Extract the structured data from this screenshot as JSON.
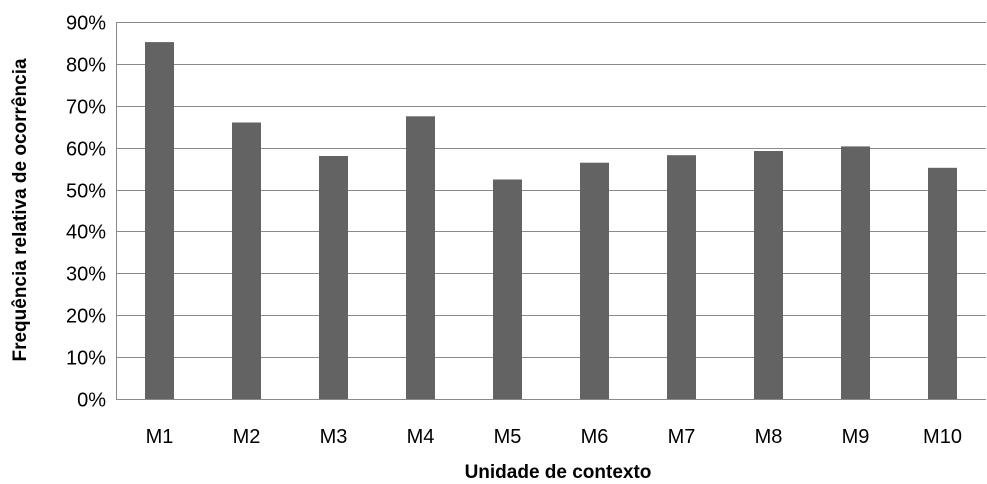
{
  "chart_data": {
    "type": "bar",
    "title": "",
    "xlabel": "Unidade de contexto",
    "ylabel": "Frequência relativa de ocorrência",
    "categories": [
      "M1",
      "M2",
      "M3",
      "M4",
      "M5",
      "M6",
      "M7",
      "M8",
      "M9",
      "M10"
    ],
    "values": [
      85.2,
      66.0,
      58.0,
      67.5,
      52.4,
      56.4,
      58.2,
      59.2,
      60.3,
      55.2
    ],
    "ylim": [
      0,
      90
    ],
    "yticks": [
      0,
      10,
      20,
      30,
      40,
      50,
      60,
      70,
      80,
      90
    ],
    "ytick_labels": [
      "0%",
      "10%",
      "20%",
      "30%",
      "40%",
      "50%",
      "60%",
      "70%",
      "80%",
      "90%"
    ],
    "grid": true,
    "legend": "none",
    "bar_color": "#636363",
    "grid_color": "#8a8a8a"
  }
}
